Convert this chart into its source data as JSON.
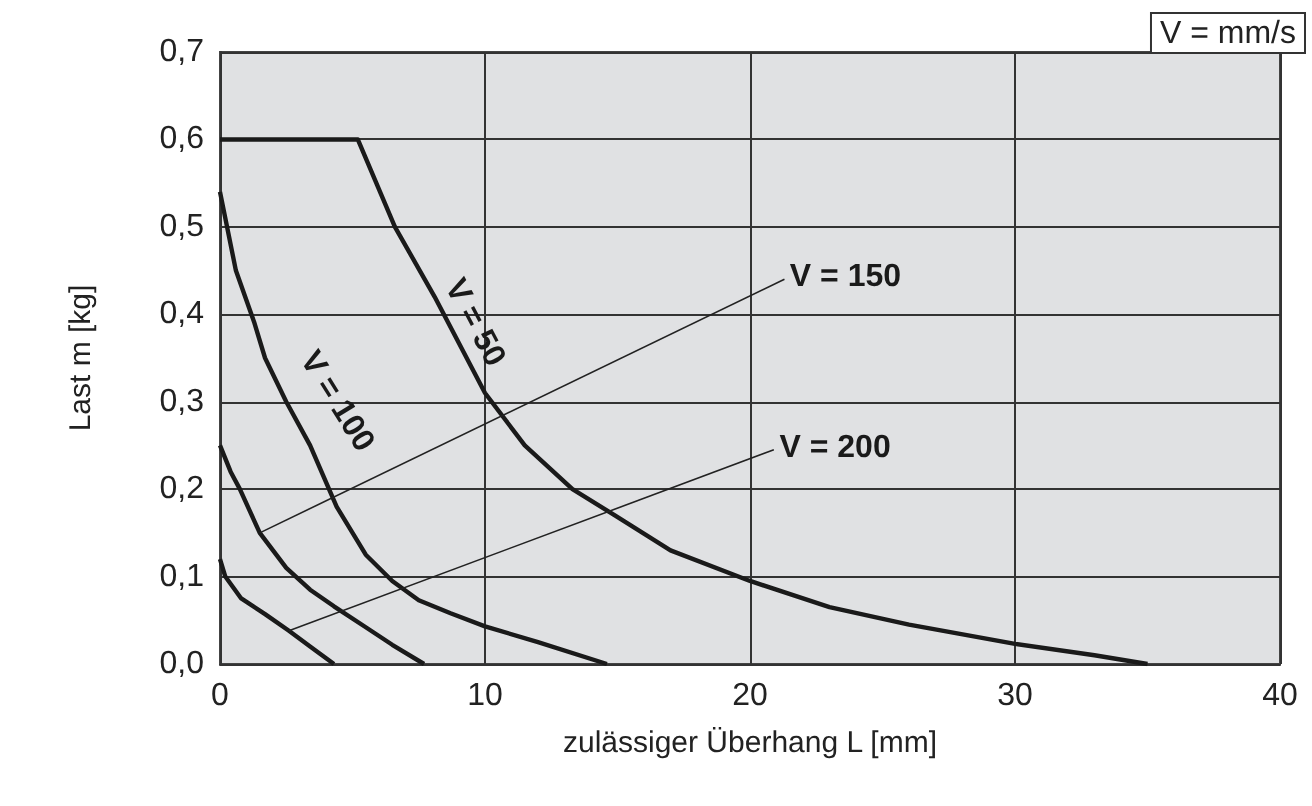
{
  "chart_data": {
    "type": "line",
    "xlabel": "zulässiger Überhang L [mm]",
    "ylabel": "Last m [kg]",
    "xlim": [
      0,
      40
    ],
    "xticks": [
      0,
      10,
      20,
      30,
      40
    ],
    "ylim": [
      0,
      0.7
    ],
    "yticks": [
      {
        "value": 0,
        "label": "0,0"
      },
      {
        "value": 0.1,
        "label": "0,1"
      },
      {
        "value": 0.2,
        "label": "0,2"
      },
      {
        "value": 0.3,
        "label": "0,3"
      },
      {
        "value": 0.4,
        "label": "0,4"
      },
      {
        "value": 0.5,
        "label": "0,5"
      },
      {
        "value": 0.6,
        "label": "0,6"
      },
      {
        "value": 0.7,
        "label": "0,7"
      }
    ],
    "grid": true,
    "legend": false,
    "marker": "none",
    "line_style": "solid",
    "annotations": [
      "V = mm/s"
    ],
    "series": [
      {
        "name": "V = 50",
        "color": "#1a1a1a",
        "x": [
          0,
          5.2,
          6.6,
          8.1,
          10,
          11.5,
          13.3,
          14.9,
          17,
          20,
          23,
          26,
          30,
          33,
          35
        ],
        "values": [
          0.6,
          0.6,
          0.5,
          0.42,
          0.31,
          0.25,
          0.2,
          0.17,
          0.13,
          0.095,
          0.065,
          0.045,
          0.023,
          0.01,
          0
        ]
      },
      {
        "name": "V = 100",
        "color": "#1a1a1a",
        "x": [
          0,
          0.6,
          1.3,
          1.7,
          2.5,
          3.4,
          4.4,
          5.5,
          6.5,
          7.5,
          8.7,
          10,
          12,
          14.6
        ],
        "values": [
          0.54,
          0.45,
          0.39,
          0.35,
          0.3,
          0.25,
          0.18,
          0.125,
          0.095,
          0.073,
          0.058,
          0.043,
          0.025,
          0
        ]
      },
      {
        "name": "V = 150",
        "color": "#1a1a1a",
        "x": [
          0,
          0.4,
          0.75,
          1.5,
          2.5,
          3.4,
          4.3,
          5.5,
          6.5,
          7.7
        ],
        "values": [
          0.25,
          0.22,
          0.2,
          0.15,
          0.11,
          0.085,
          0.066,
          0.042,
          0.022,
          0
        ]
      },
      {
        "name": "V = 200",
        "color": "#1a1a1a",
        "x": [
          0,
          0.2,
          0.8,
          1.7,
          2.6,
          3.4,
          4.3
        ],
        "values": [
          0.12,
          0.1,
          0.075,
          0.057,
          0.038,
          0.02,
          0
        ]
      }
    ]
  }
}
